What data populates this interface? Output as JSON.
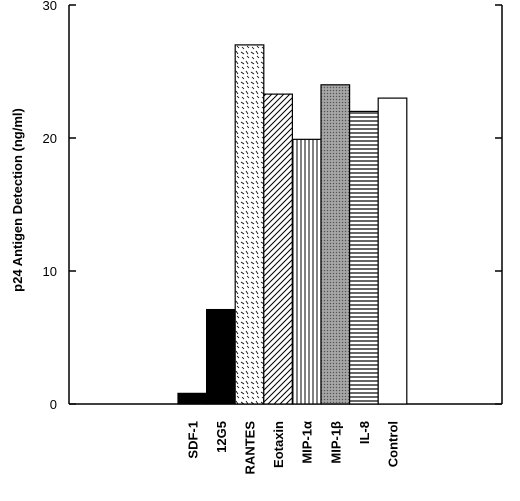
{
  "chart_data": {
    "type": "bar",
    "title": "",
    "xlabel": "",
    "ylabel": "p24 Antigen Detection (ng/ml)",
    "ylim": [
      0,
      30
    ],
    "yticks": [
      0,
      10,
      20,
      30
    ],
    "grid": false,
    "categories": [
      "SDF-1",
      "12G5",
      "RANTES",
      "Eotaxin",
      "MIP-1α",
      "MIP-1β",
      "IL-8",
      "Control"
    ],
    "values": [
      0.8,
      7.1,
      27.0,
      23.3,
      19.9,
      24.0,
      22.0,
      23.0
    ],
    "fills": [
      "black",
      "black",
      "dashes",
      "diagonal",
      "vertical-lines",
      "gray-stipple",
      "horizontal-lines",
      "white"
    ]
  }
}
